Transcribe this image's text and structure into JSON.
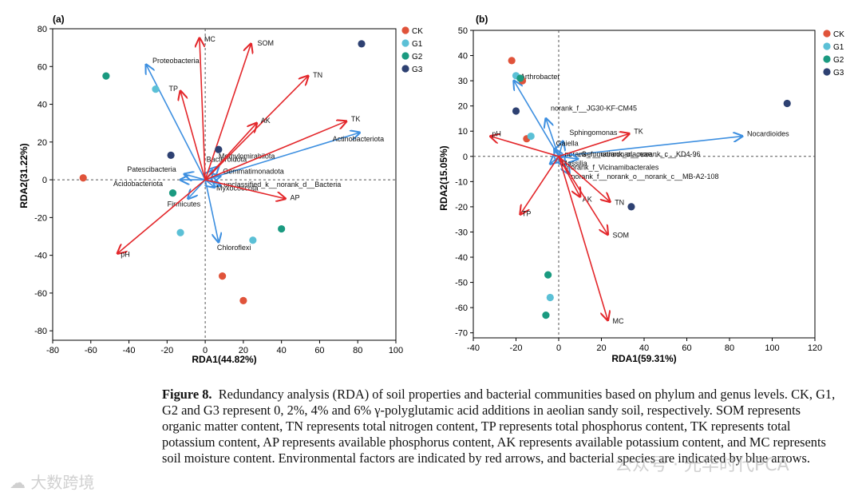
{
  "chart_data": [
    {
      "type": "scatter",
      "panel_label": "(a)",
      "xlabel": "RDA1(44.82%)",
      "ylabel": "RDA2(31.22%)",
      "xlim": [
        -80,
        100
      ],
      "ylim": [
        -85,
        80
      ],
      "xticks": [
        -80,
        -60,
        -40,
        -20,
        0,
        20,
        40,
        60,
        80,
        100
      ],
      "yticks": [
        -80,
        -60,
        -40,
        -20,
        0,
        20,
        40,
        60,
        80
      ],
      "legend": {
        "position": "top-right",
        "entries": [
          "CK",
          "G1",
          "G2",
          "G3"
        ]
      },
      "series": [
        {
          "name": "CK",
          "points": [
            [
              -64,
              1
            ],
            [
              9,
              -51
            ],
            [
              20,
              -64
            ]
          ]
        },
        {
          "name": "G1",
          "points": [
            [
              -26,
              48
            ],
            [
              -13,
              -28
            ],
            [
              25,
              -32
            ]
          ]
        },
        {
          "name": "G2",
          "points": [
            [
              -52,
              55
            ],
            [
              -17,
              -7
            ],
            [
              40,
              -26
            ]
          ]
        },
        {
          "name": "G3",
          "points": [
            [
              -18,
              13
            ],
            [
              7,
              16
            ],
            [
              82,
              72
            ]
          ]
        }
      ],
      "env_arrows": [
        {
          "label": "MC",
          "x": -3,
          "y": 75
        },
        {
          "label": "SOM",
          "x": 24,
          "y": 72
        },
        {
          "label": "TN",
          "x": 54,
          "y": 55
        },
        {
          "label": "TP",
          "x": -13,
          "y": 47
        },
        {
          "label": "AK",
          "x": 27,
          "y": 30
        },
        {
          "label": "TK",
          "x": 74,
          "y": 31
        },
        {
          "label": "AP",
          "x": 42,
          "y": -10
        },
        {
          "label": "pH",
          "x": -46,
          "y": -39
        }
      ],
      "species_arrows": [
        {
          "label": "Proteobacteria",
          "x": -31,
          "y": 61
        },
        {
          "label": "Actinobacteriota",
          "x": 81,
          "y": 25
        },
        {
          "label": "Methylomirabilota",
          "x": 7,
          "y": 7
        },
        {
          "label": "Bacteroidota",
          "x": 4,
          "y": 5
        },
        {
          "label": "Gemmatimonadota",
          "x": 8,
          "y": 2
        },
        {
          "label": "unclassified_k__norank_d__Bacteria",
          "x": 8,
          "y": -3
        },
        {
          "label": "Patescibacteria",
          "x": -11,
          "y": 3
        },
        {
          "label": "Acidobacteriota",
          "x": -13,
          "y": 0
        },
        {
          "label": "Myxococcota",
          "x": 5,
          "y": -4
        },
        {
          "label": "Firmicutes",
          "x": -9,
          "y": -10
        },
        {
          "label": "Chloroflexi",
          "x": 7,
          "y": -33
        }
      ]
    },
    {
      "type": "scatter",
      "panel_label": "(b)",
      "xlabel": "RDA1(59.31%)",
      "ylabel": "RDA2(15.05%)",
      "xlim": [
        -40,
        120
      ],
      "ylim": [
        -72,
        50
      ],
      "xticks": [
        -40,
        -20,
        0,
        20,
        40,
        60,
        80,
        100,
        120
      ],
      "yticks": [
        -70,
        -60,
        -50,
        -40,
        -30,
        -20,
        -10,
        0,
        10,
        20,
        30,
        40,
        50
      ],
      "legend": {
        "position": "top-right",
        "entries": [
          "CK",
          "G1",
          "G2",
          "G3"
        ]
      },
      "series": [
        {
          "name": "CK",
          "points": [
            [
              -22,
              38
            ],
            [
              -17,
              30
            ],
            [
              -15,
              7
            ]
          ]
        },
        {
          "name": "G1",
          "points": [
            [
              -20,
              32
            ],
            [
              -13,
              8
            ],
            [
              -4,
              -56
            ]
          ]
        },
        {
          "name": "G2",
          "points": [
            [
              -18,
              31
            ],
            [
              -5,
              -47
            ],
            [
              -6,
              -63
            ]
          ]
        },
        {
          "name": "G3",
          "points": [
            [
              -20,
              18
            ],
            [
              34,
              -20
            ],
            [
              107,
              21
            ]
          ]
        }
      ],
      "env_arrows": [
        {
          "label": "pH",
          "x": -32,
          "y": 8
        },
        {
          "label": "TK",
          "x": 33,
          "y": 9
        },
        {
          "label": "TP",
          "x": -18,
          "y": -23
        },
        {
          "label": "AK",
          "x": 10,
          "y": -16
        },
        {
          "label": "TN",
          "x": 24,
          "y": -18
        },
        {
          "label": "SOM",
          "x": 23,
          "y": -31
        },
        {
          "label": "MC",
          "x": 23,
          "y": -65
        }
      ],
      "species_arrows": [
        {
          "label": "Arthrobacter",
          "x": -21,
          "y": 30
        },
        {
          "label": "Nocardioides",
          "x": 86,
          "y": 8
        },
        {
          "label": "norank_f__JG30-KF-CM45",
          "x": -6,
          "y": 15
        },
        {
          "label": "Sphingomonas",
          "x": 2,
          "y": 6
        },
        {
          "label": "Gaiella",
          "x": -2,
          "y": 3
        },
        {
          "label": "norank_f__norank_o__norank_c__KD4-96",
          "x": 2,
          "y": 0
        },
        {
          "label": "Gemmatimonadaceae",
          "x": 9,
          "y": -1
        },
        {
          "label": "norank_f_Vicinamibacterales",
          "x": 3,
          "y": -4
        },
        {
          "label": "norank_f__norank_o__norank_c__MB-A2-108",
          "x": 5,
          "y": -7
        },
        {
          "label": "Massilia",
          "x": -4,
          "y": -3
        }
      ]
    }
  ],
  "caption": {
    "label": "Figure 8.",
    "text": "Redundancy analysis (RDA) of soil properties and bacterial communities based on phylum and genus levels. CK, G1, G2 and G3 represent 0, 2%, 4% and 6% γ-polyglutamic acid additions in aeolian sandy soil, respectively. SOM represents organic matter content, TN represents total nitrogen content, TP represents total phosphorus content, TK represents total potassium content, AP represents available phosphorus content, AK represents available potassium content, and MC represents soil moisture content. Environmental factors are indicated by red arrows, and bacterial species are indicated by blue arrows."
  },
  "watermarks": {
    "left": "大数跨境",
    "right": "公众号 · 光华时代PCA"
  },
  "colors": {
    "CK": "#e0533a",
    "G1": "#5bc0d6",
    "G2": "#1a9a80",
    "G3": "#2e4172",
    "env_arrow": "#e3262a",
    "species_arrow": "#3d8fe0"
  }
}
